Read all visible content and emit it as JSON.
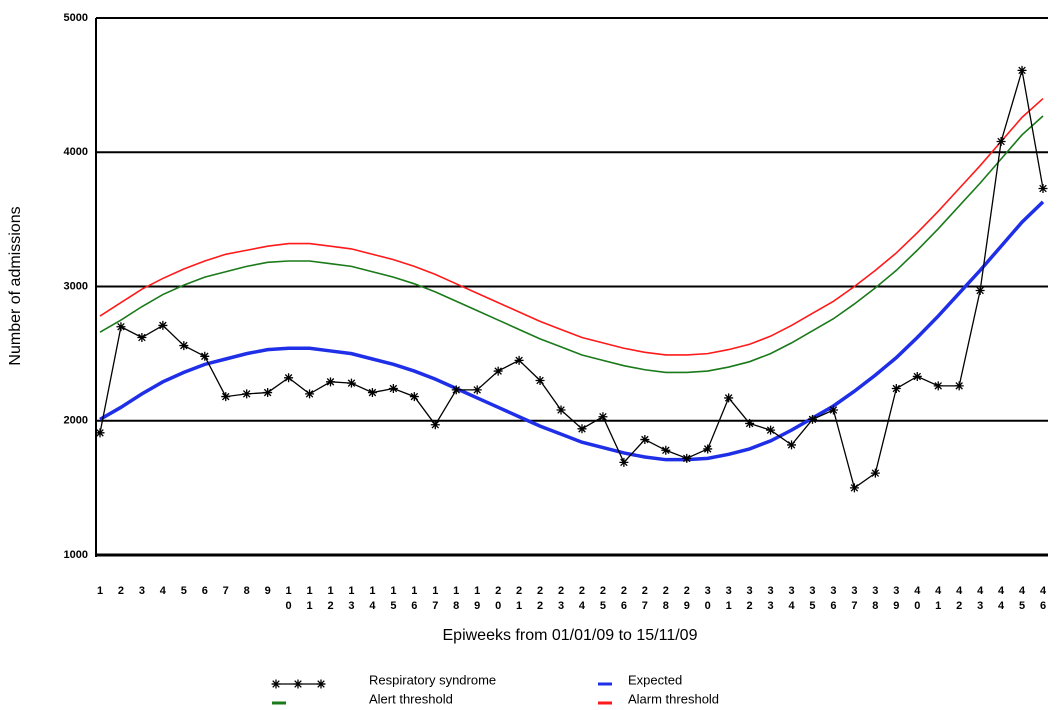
{
  "chart_data": {
    "type": "line",
    "x_label": "Epiweeks from 01/01/09 to 15/11/09",
    "y_label": "Number of admissions",
    "categories": [
      "1",
      "2",
      "3",
      "4",
      "5",
      "6",
      "7",
      "8",
      "9",
      "10",
      "11",
      "12",
      "13",
      "14",
      "15",
      "16",
      "17",
      "18",
      "19",
      "20",
      "21",
      "22",
      "23",
      "24",
      "25",
      "26",
      "27",
      "28",
      "29",
      "30",
      "31",
      "32",
      "33",
      "34",
      "35",
      "36",
      "37",
      "38",
      "39",
      "40",
      "41",
      "42",
      "43",
      "44",
      "45",
      "46"
    ],
    "ylim": [
      1000,
      5000
    ],
    "yticks": [
      1000,
      2000,
      3000,
      4000,
      5000
    ],
    "grid": true,
    "series": [
      {
        "name": "Respiratory syndrome",
        "color": "#000000",
        "marker": "asterisk",
        "values": [
          1910,
          2700,
          2620,
          2710,
          2560,
          2480,
          2180,
          2200,
          2210,
          2320,
          2200,
          2290,
          2280,
          2210,
          2240,
          2180,
          1970,
          2230,
          2230,
          2370,
          2450,
          2300,
          2080,
          1940,
          2030,
          1690,
          1860,
          1780,
          1720,
          1790,
          2170,
          1980,
          1930,
          1820,
          2010,
          2080,
          1500,
          1610,
          2240,
          2330,
          2260,
          2260,
          2970,
          4080,
          4610,
          3730
        ]
      },
      {
        "name": "Expected",
        "color": "#1f2fe8",
        "values": [
          2010,
          2100,
          2200,
          2290,
          2360,
          2420,
          2460,
          2500,
          2530,
          2540,
          2540,
          2520,
          2500,
          2460,
          2420,
          2370,
          2310,
          2240,
          2170,
          2100,
          2030,
          1960,
          1900,
          1840,
          1800,
          1760,
          1730,
          1710,
          1710,
          1720,
          1750,
          1790,
          1850,
          1930,
          2020,
          2110,
          2220,
          2340,
          2470,
          2620,
          2780,
          2950,
          3120,
          3300,
          3480,
          3630
        ]
      },
      {
        "name": "Alert threshold",
        "color": "#1a7a1a",
        "values": [
          2660,
          2750,
          2850,
          2940,
          3010,
          3070,
          3110,
          3150,
          3180,
          3190,
          3190,
          3170,
          3150,
          3110,
          3070,
          3020,
          2960,
          2890,
          2820,
          2750,
          2680,
          2610,
          2550,
          2490,
          2450,
          2410,
          2380,
          2360,
          2360,
          2370,
          2400,
          2440,
          2500,
          2580,
          2670,
          2760,
          2870,
          2990,
          3120,
          3270,
          3430,
          3600,
          3770,
          3950,
          4130,
          4270
        ]
      },
      {
        "name": "Alarm threshold",
        "color": "#ff1a1a",
        "values": [
          2780,
          2880,
          2980,
          3060,
          3130,
          3190,
          3240,
          3270,
          3300,
          3320,
          3320,
          3300,
          3280,
          3240,
          3200,
          3150,
          3090,
          3020,
          2950,
          2880,
          2810,
          2740,
          2680,
          2620,
          2580,
          2540,
          2510,
          2490,
          2490,
          2500,
          2530,
          2570,
          2630,
          2710,
          2800,
          2890,
          3000,
          3120,
          3250,
          3400,
          3560,
          3730,
          3900,
          4080,
          4260,
          4400
        ]
      }
    ]
  }
}
